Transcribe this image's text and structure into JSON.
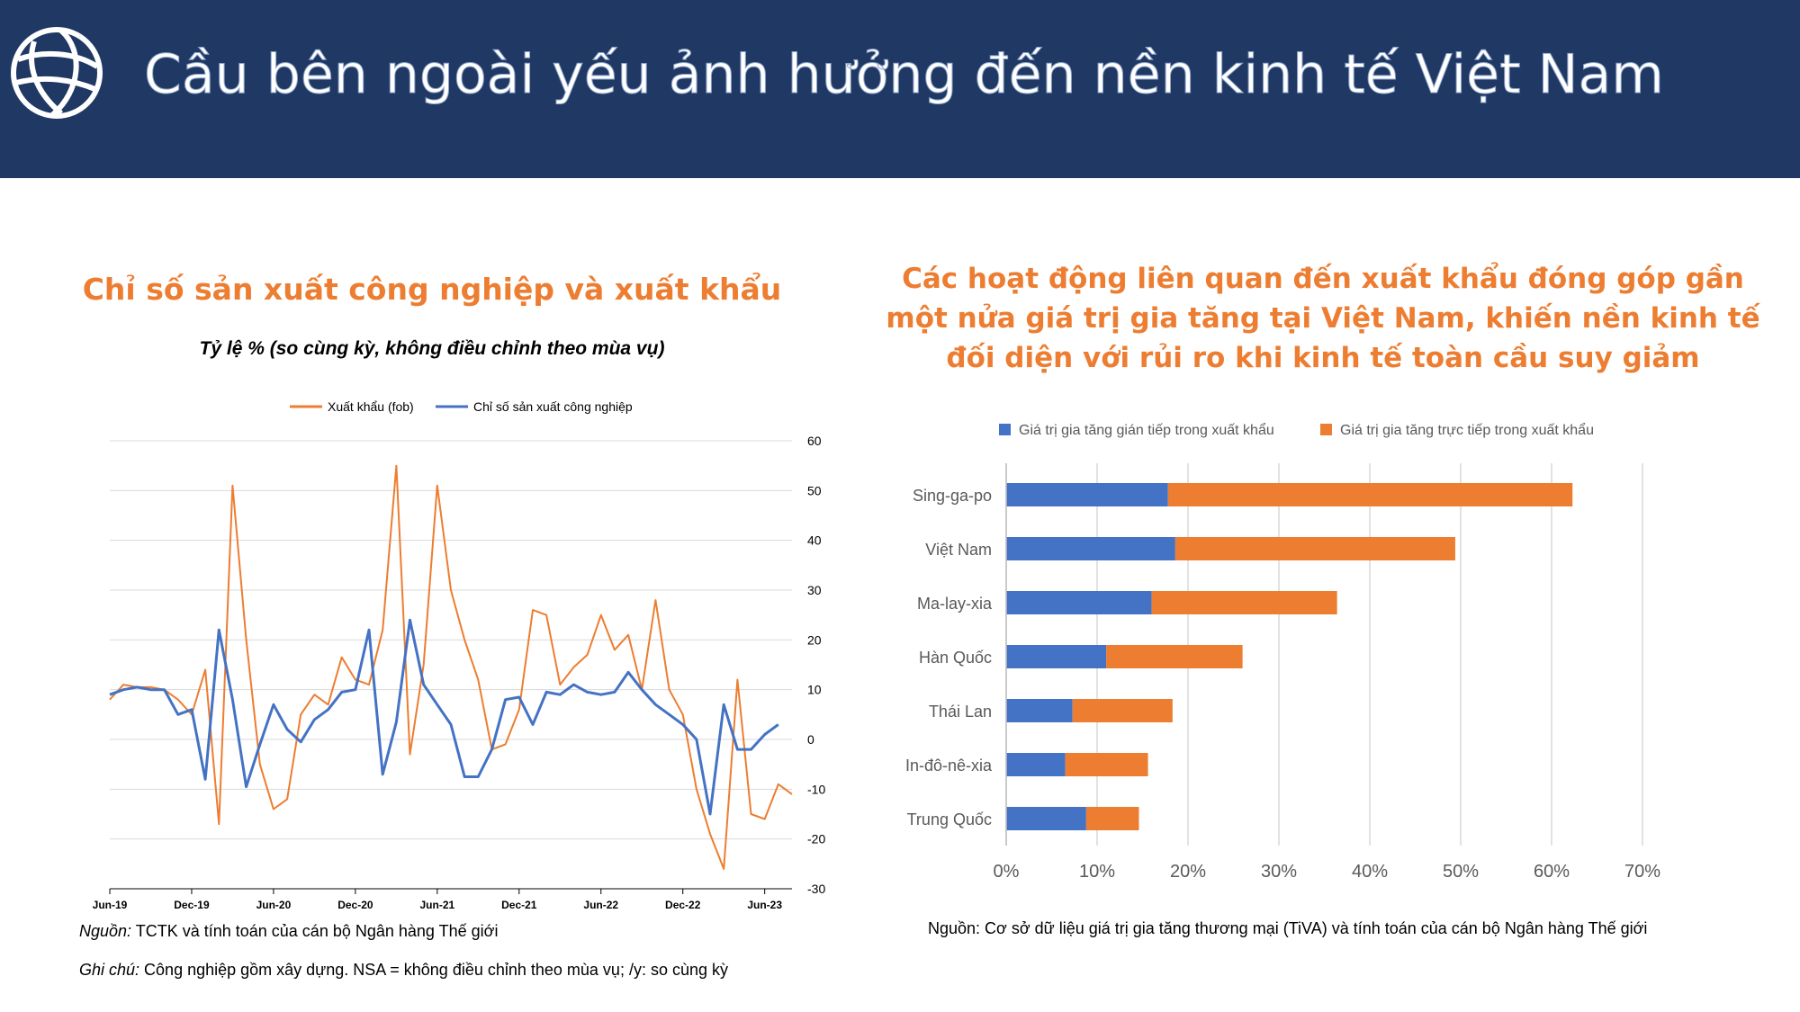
{
  "header": {
    "title": "Cầu bên ngoài yếu ảnh hưởng đến nền kinh tế Việt Nam",
    "logo_icon": "globe-icon",
    "background": "#1f3864"
  },
  "left_panel": {
    "source_label": "Nguồn:",
    "source_text": " TCTK và tính toán của cán bộ Ngân hàng Thế giới",
    "note_label": "Ghi chú:",
    "note_text": " Công nghiệp gồm xây dựng. NSA = không điều chỉnh theo mùa vụ; /y: so cùng kỳ"
  },
  "right_panel": {
    "source_text": "Nguồn: Cơ sở dữ liệu giá trị gia tăng thương mại (TiVA) và tính toán của cán bộ Ngân hàng Thế giới"
  },
  "chart_data": [
    {
      "type": "line",
      "title": "Chỉ số sản xuất công nghiệp và xuất khẩu",
      "subtitle": "Tỷ lệ % (so cùng kỳ, không điều chỉnh theo mùa vụ)",
      "x_tick_labels": [
        "Jun-19",
        "Dec-19",
        "Jun-20",
        "Dec-20",
        "Jun-21",
        "Dec-21",
        "Jun-22",
        "Dec-22",
        "Jun-23"
      ],
      "x_tick_index": [
        0,
        6,
        12,
        18,
        24,
        30,
        36,
        42,
        48
      ],
      "ylim": [
        -30,
        60
      ],
      "y_ticks": [
        -30,
        -20,
        -10,
        0,
        10,
        20,
        30,
        40,
        50,
        60
      ],
      "y_axis_side": "right",
      "grid": true,
      "legend_position": "top",
      "series": [
        {
          "name": "Xuất khẩu (fob)",
          "color": "#ed7d31",
          "values": [
            8,
            11,
            10.5,
            10.5,
            10,
            8,
            5,
            14,
            -17,
            51,
            20,
            -5,
            -14,
            -12,
            5,
            9,
            7,
            16.5,
            12,
            11,
            22,
            55,
            -3,
            15,
            51,
            30,
            20,
            12,
            -2,
            -1,
            6,
            26,
            25,
            11,
            14.5,
            17,
            25,
            18,
            21,
            10,
            28,
            10,
            5,
            -10,
            -19,
            -26,
            12,
            -15,
            -16,
            -9,
            -11
          ]
        },
        {
          "name": "Chỉ số sản xuất công nghiệp",
          "color": "#4472c4",
          "values": [
            9,
            10,
            10.5,
            10,
            10,
            5,
            6,
            -8,
            22,
            8,
            -9.5,
            -1,
            7,
            2,
            -0.5,
            4,
            6,
            9.5,
            10,
            22,
            -7,
            3.5,
            24,
            11,
            7,
            3,
            -7.5,
            -7.5,
            -2,
            8,
            8.5,
            3,
            9.5,
            9,
            11,
            9.5,
            9,
            9.5,
            13.5,
            10,
            7,
            5,
            3,
            0,
            -15,
            7,
            -2,
            -2,
            1,
            3
          ]
        }
      ]
    },
    {
      "type": "bar",
      "orientation": "horizontal",
      "stacked": true,
      "title": "Các hoạt động liên quan đến xuất khẩu đóng góp gần một nửa giá trị gia tăng tại Việt Nam, khiến nền kinh tế đối diện với rủi ro khi kinh tế toàn cầu suy giảm",
      "categories": [
        "Sing-ga-po",
        "Việt Nam",
        "Ma-lay-xia",
        "Hàn Quốc",
        "Thái Lan",
        "In-đô-nê-xia",
        "Trung Quốc"
      ],
      "xlim": [
        0,
        70
      ],
      "x_ticks": [
        0,
        10,
        20,
        30,
        40,
        50,
        60,
        70
      ],
      "x_tick_labels": [
        "0%",
        "10%",
        "20%",
        "30%",
        "40%",
        "50%",
        "60%",
        "70%"
      ],
      "grid": true,
      "legend_position": "top",
      "series": [
        {
          "name": "Giá trị gia tăng gián tiếp trong xuất khẩu",
          "color": "#4472c4",
          "values": [
            17.8,
            18.6,
            16,
            11,
            7.3,
            6.5,
            8.8
          ]
        },
        {
          "name": "Giá trị gia tăng trực tiếp trong xuất khẩu",
          "color": "#ed7d31",
          "values": [
            44.5,
            30.8,
            20.4,
            15,
            11,
            9.1,
            5.8
          ]
        }
      ]
    }
  ]
}
